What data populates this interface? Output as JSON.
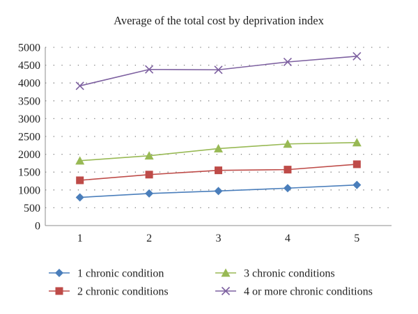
{
  "chart_data": {
    "type": "line",
    "title": "Average of the total cost by deprivation index",
    "xlabel": "",
    "ylabel": "",
    "categories": [
      "1",
      "2",
      "3",
      "4",
      "5"
    ],
    "ylim": [
      0,
      5000
    ],
    "yticks": [
      "0",
      "500",
      "1000",
      "1500",
      "2000",
      "2500",
      "3000",
      "3500",
      "4000",
      "4500",
      "5000"
    ],
    "grid": "horizontal dotted",
    "legend_position": "bottom",
    "series": [
      {
        "name": "1 chronic condition",
        "values": [
          790,
          900,
          970,
          1050,
          1140
        ],
        "color": "#4a7ebb",
        "marker": "diamond"
      },
      {
        "name": "2 chronic conditions",
        "values": [
          1270,
          1430,
          1550,
          1570,
          1720
        ],
        "color": "#be4b48",
        "marker": "square"
      },
      {
        "name": "3 chronic conditions",
        "values": [
          1820,
          1960,
          2160,
          2290,
          2330
        ],
        "color": "#98b954",
        "marker": "triangle"
      },
      {
        "name": "4 or more chronic conditions",
        "values": [
          3920,
          4380,
          4370,
          4590,
          4750
        ],
        "color": "#7d60a0",
        "marker": "x"
      }
    ]
  }
}
